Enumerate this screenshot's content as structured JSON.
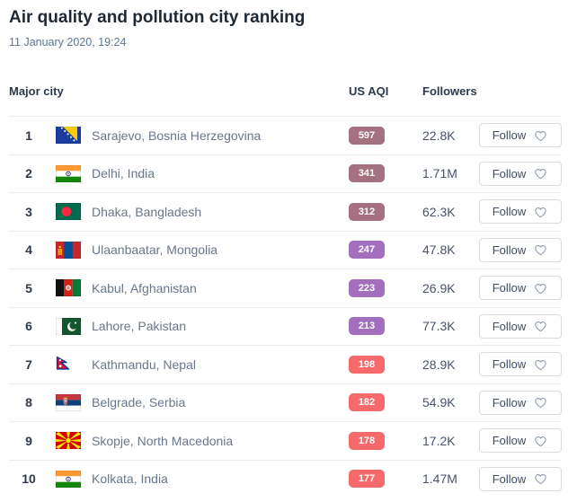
{
  "header": {
    "title": "Air quality and pollution city ranking",
    "timestamp": "11 January 2020, 19:24"
  },
  "table": {
    "columns": {
      "city": "Major city",
      "aqi": "US AQI",
      "followers": "Followers"
    },
    "follow_label": "Follow",
    "aqi_level_colors": {
      "hazardous": "#a5707f",
      "very_unhealthy": "#a46ebe",
      "unhealthy": "#f66a6b"
    },
    "rows": [
      {
        "rank": 1,
        "flag": "ba",
        "city": "Sarajevo, Bosnia Herzegovina",
        "aqi": 597,
        "level": "hazardous",
        "followers": "22.8K"
      },
      {
        "rank": 2,
        "flag": "in",
        "city": "Delhi, India",
        "aqi": 341,
        "level": "hazardous",
        "followers": "1.71M"
      },
      {
        "rank": 3,
        "flag": "bd",
        "city": "Dhaka, Bangladesh",
        "aqi": 312,
        "level": "hazardous",
        "followers": "62.3K"
      },
      {
        "rank": 4,
        "flag": "mn",
        "city": "Ulaanbaatar, Mongolia",
        "aqi": 247,
        "level": "very_unhealthy",
        "followers": "47.8K"
      },
      {
        "rank": 5,
        "flag": "af",
        "city": "Kabul, Afghanistan",
        "aqi": 223,
        "level": "very_unhealthy",
        "followers": "26.9K"
      },
      {
        "rank": 6,
        "flag": "pk",
        "city": "Lahore, Pakistan",
        "aqi": 213,
        "level": "very_unhealthy",
        "followers": "77.3K"
      },
      {
        "rank": 7,
        "flag": "np",
        "city": "Kathmandu, Nepal",
        "aqi": 198,
        "level": "unhealthy",
        "followers": "28.9K"
      },
      {
        "rank": 8,
        "flag": "rs",
        "city": "Belgrade, Serbia",
        "aqi": 182,
        "level": "unhealthy",
        "followers": "54.9K"
      },
      {
        "rank": 9,
        "flag": "mk",
        "city": "Skopje, North Macedonia",
        "aqi": 178,
        "level": "unhealthy",
        "followers": "17.2K"
      },
      {
        "rank": 10,
        "flag": "in",
        "city": "Kolkata, India",
        "aqi": 177,
        "level": "unhealthy",
        "followers": "1.47M"
      }
    ]
  }
}
